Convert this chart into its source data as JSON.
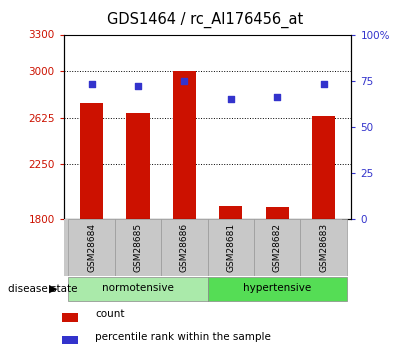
{
  "title": "GDS1464 / rc_AI176456_at",
  "categories": [
    "GSM28684",
    "GSM28685",
    "GSM28686",
    "GSM28681",
    "GSM28682",
    "GSM28683"
  ],
  "bar_values": [
    2740,
    2660,
    3000,
    1910,
    1900,
    2640
  ],
  "percentile_values": [
    73,
    72,
    75,
    65,
    66,
    73
  ],
  "bar_color": "#cc1100",
  "dot_color": "#3333cc",
  "ylim_left": [
    1800,
    3300
  ],
  "ylim_right": [
    0,
    100
  ],
  "yticks_left": [
    1800,
    2250,
    2625,
    3000,
    3300
  ],
  "yticks_right": [
    0,
    25,
    50,
    75,
    100
  ],
  "normotensive_color": "#aaeaaa",
  "hypertensive_color": "#55dd55",
  "tick_area_bg": "#c8c8c8",
  "background_color": "#ffffff",
  "title_fontsize": 10.5,
  "axis_color_left": "#cc1100",
  "axis_color_right": "#3333cc"
}
